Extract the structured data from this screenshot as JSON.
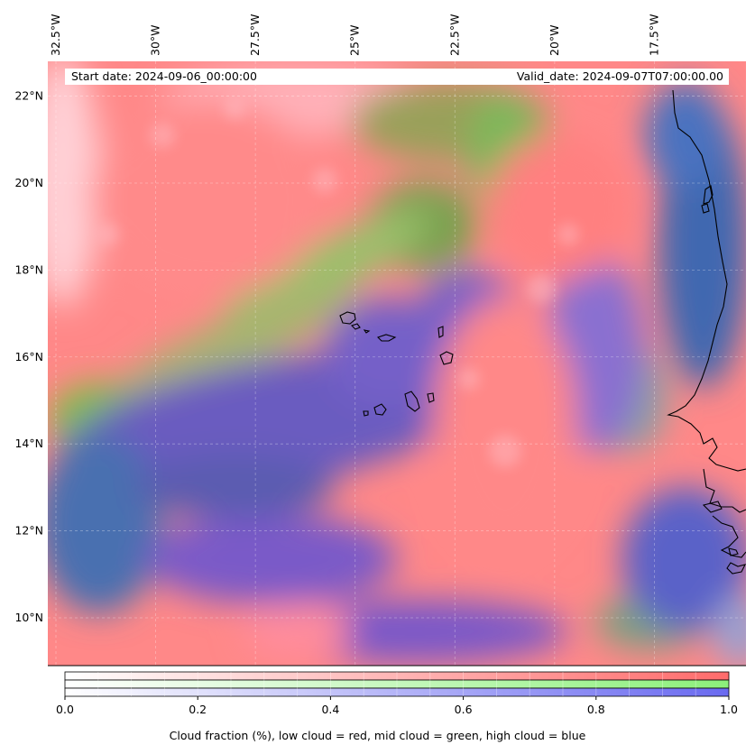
{
  "header": {
    "start_label": "Start date:",
    "start_value": "2024-09-06_00:00:00",
    "valid_label": "Valid_date:",
    "valid_value": "2024-09-07T07:00:00.00"
  },
  "axes": {
    "lon_ticks": [
      "32.5°W",
      "30°W",
      "27.5°W",
      "25°W",
      "22.5°W",
      "20°W",
      "17.5°W"
    ],
    "lon_values": [
      -32.5,
      -30,
      -27.5,
      -25,
      -22.5,
      -20,
      -17.5
    ],
    "lat_ticks": [
      "22°N",
      "20°N",
      "18°N",
      "16°N",
      "14°N",
      "12°N",
      "10°N"
    ],
    "lat_values": [
      22,
      20,
      18,
      16,
      14,
      12,
      10
    ],
    "lon_range": [
      -32.5,
      -15.0
    ],
    "lat_range": [
      8.9,
      22.8
    ],
    "gridlines": true
  },
  "colorbar": {
    "title": "Cloud fraction (%), low cloud = red, mid cloud = green, high cloud = blue",
    "ticks": [
      "0.0",
      "0.2",
      "0.4",
      "0.6",
      "0.8",
      "1.0"
    ],
    "tick_values": [
      0.0,
      0.2,
      0.4,
      0.6,
      0.8,
      1.0
    ],
    "range": [
      0,
      1
    ],
    "low_color": "#ff6b6b",
    "mid_color": "#8cf07a",
    "high_color": "#6a6af0"
  },
  "colors": {
    "low_cloud": "#ff8585",
    "mid_cloud": "#82c95a",
    "high_cloud": "#6a5fc8",
    "clear_ocean": "#4d6fb0"
  }
}
